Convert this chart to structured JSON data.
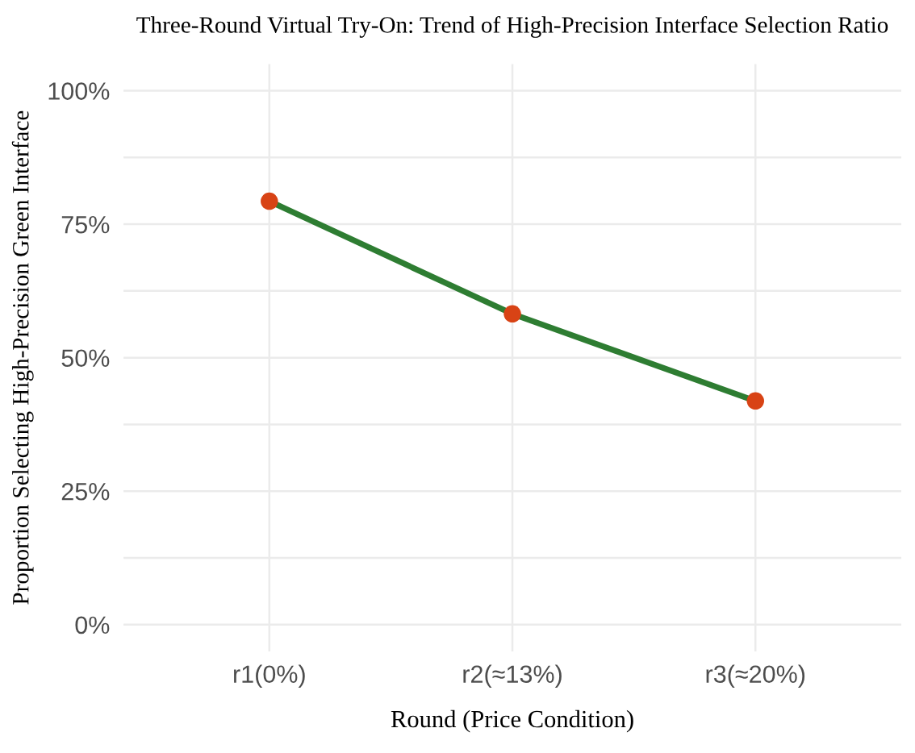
{
  "chart_data": {
    "type": "line",
    "title": "Three-Round Virtual Try-On: Trend of High-Precision Interface Selection Ratio",
    "xlabel": "Round (Price Condition)",
    "ylabel": "Proportion Selecting High-Precision Green Interface",
    "categories": [
      "r1(0%)",
      "r2(≈13%)",
      "r3(≈20%)"
    ],
    "series": [
      {
        "color": "#2e7d32",
        "values": [
          79.3,
          58.2,
          41.9
        ]
      },
      {
        "type": "scatter",
        "color": "#d84315",
        "values": [
          79.3,
          58.2,
          41.9
        ]
      }
    ],
    "ylim": [
      -5,
      105
    ],
    "yticks": [
      {
        "value": 0,
        "label": "0%"
      },
      {
        "value": 12.5,
        "label": null
      },
      {
        "value": 25,
        "label": "25%"
      },
      {
        "value": 37.5,
        "label": null
      },
      {
        "value": 50,
        "label": "50%"
      },
      {
        "value": 62.5,
        "label": null
      },
      {
        "value": 75,
        "label": "75%"
      },
      {
        "value": 87.5,
        "label": null
      },
      {
        "value": 100,
        "label": "100%"
      }
    ],
    "grid": true,
    "legend": false
  }
}
